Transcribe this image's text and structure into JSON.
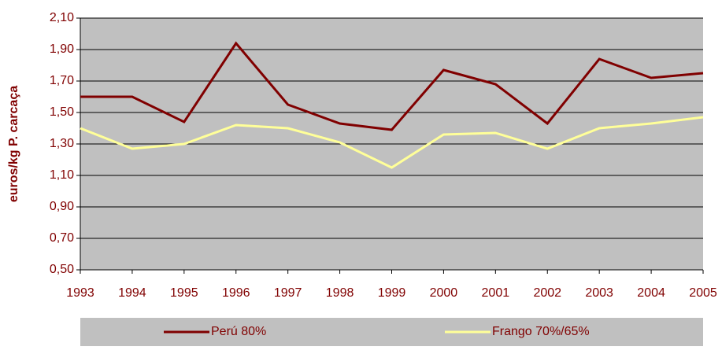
{
  "chart_data": {
    "type": "line",
    "y_label": "euros/kg P. carcaça",
    "x": [
      1993,
      1994,
      1995,
      1996,
      1997,
      1998,
      1999,
      2000,
      2001,
      2002,
      2003,
      2004,
      2005
    ],
    "xlim": [
      1993,
      2005
    ],
    "xticks": [
      1993,
      1994,
      1995,
      1996,
      1997,
      1998,
      1999,
      2000,
      2001,
      2002,
      2003,
      2004,
      2005
    ],
    "ylim": [
      0.5,
      2.1
    ],
    "yticks": [
      {
        "value": 0.5,
        "label": "0,50"
      },
      {
        "value": 0.7,
        "label": "0,70"
      },
      {
        "value": 0.9,
        "label": "0,90"
      },
      {
        "value": 1.1,
        "label": "1,10"
      },
      {
        "value": 1.3,
        "label": "1,30"
      },
      {
        "value": 1.5,
        "label": "1,50"
      },
      {
        "value": 1.7,
        "label": "1,70"
      },
      {
        "value": 1.9,
        "label": "1,90"
      },
      {
        "value": 2.1,
        "label": "2,10"
      }
    ],
    "grid": true,
    "legend": "bottom",
    "series": [
      {
        "name": "Perú 80%",
        "color": "#800000",
        "values": [
          1.6,
          1.6,
          1.44,
          1.94,
          1.55,
          1.43,
          1.39,
          1.77,
          1.68,
          1.43,
          1.84,
          1.72,
          1.75
        ]
      },
      {
        "name": "Frango 70%/65%",
        "color": "#ffff99",
        "values": [
          1.4,
          1.27,
          1.3,
          1.42,
          1.4,
          1.31,
          1.15,
          1.36,
          1.37,
          1.27,
          1.4,
          1.43,
          1.47
        ]
      }
    ]
  }
}
